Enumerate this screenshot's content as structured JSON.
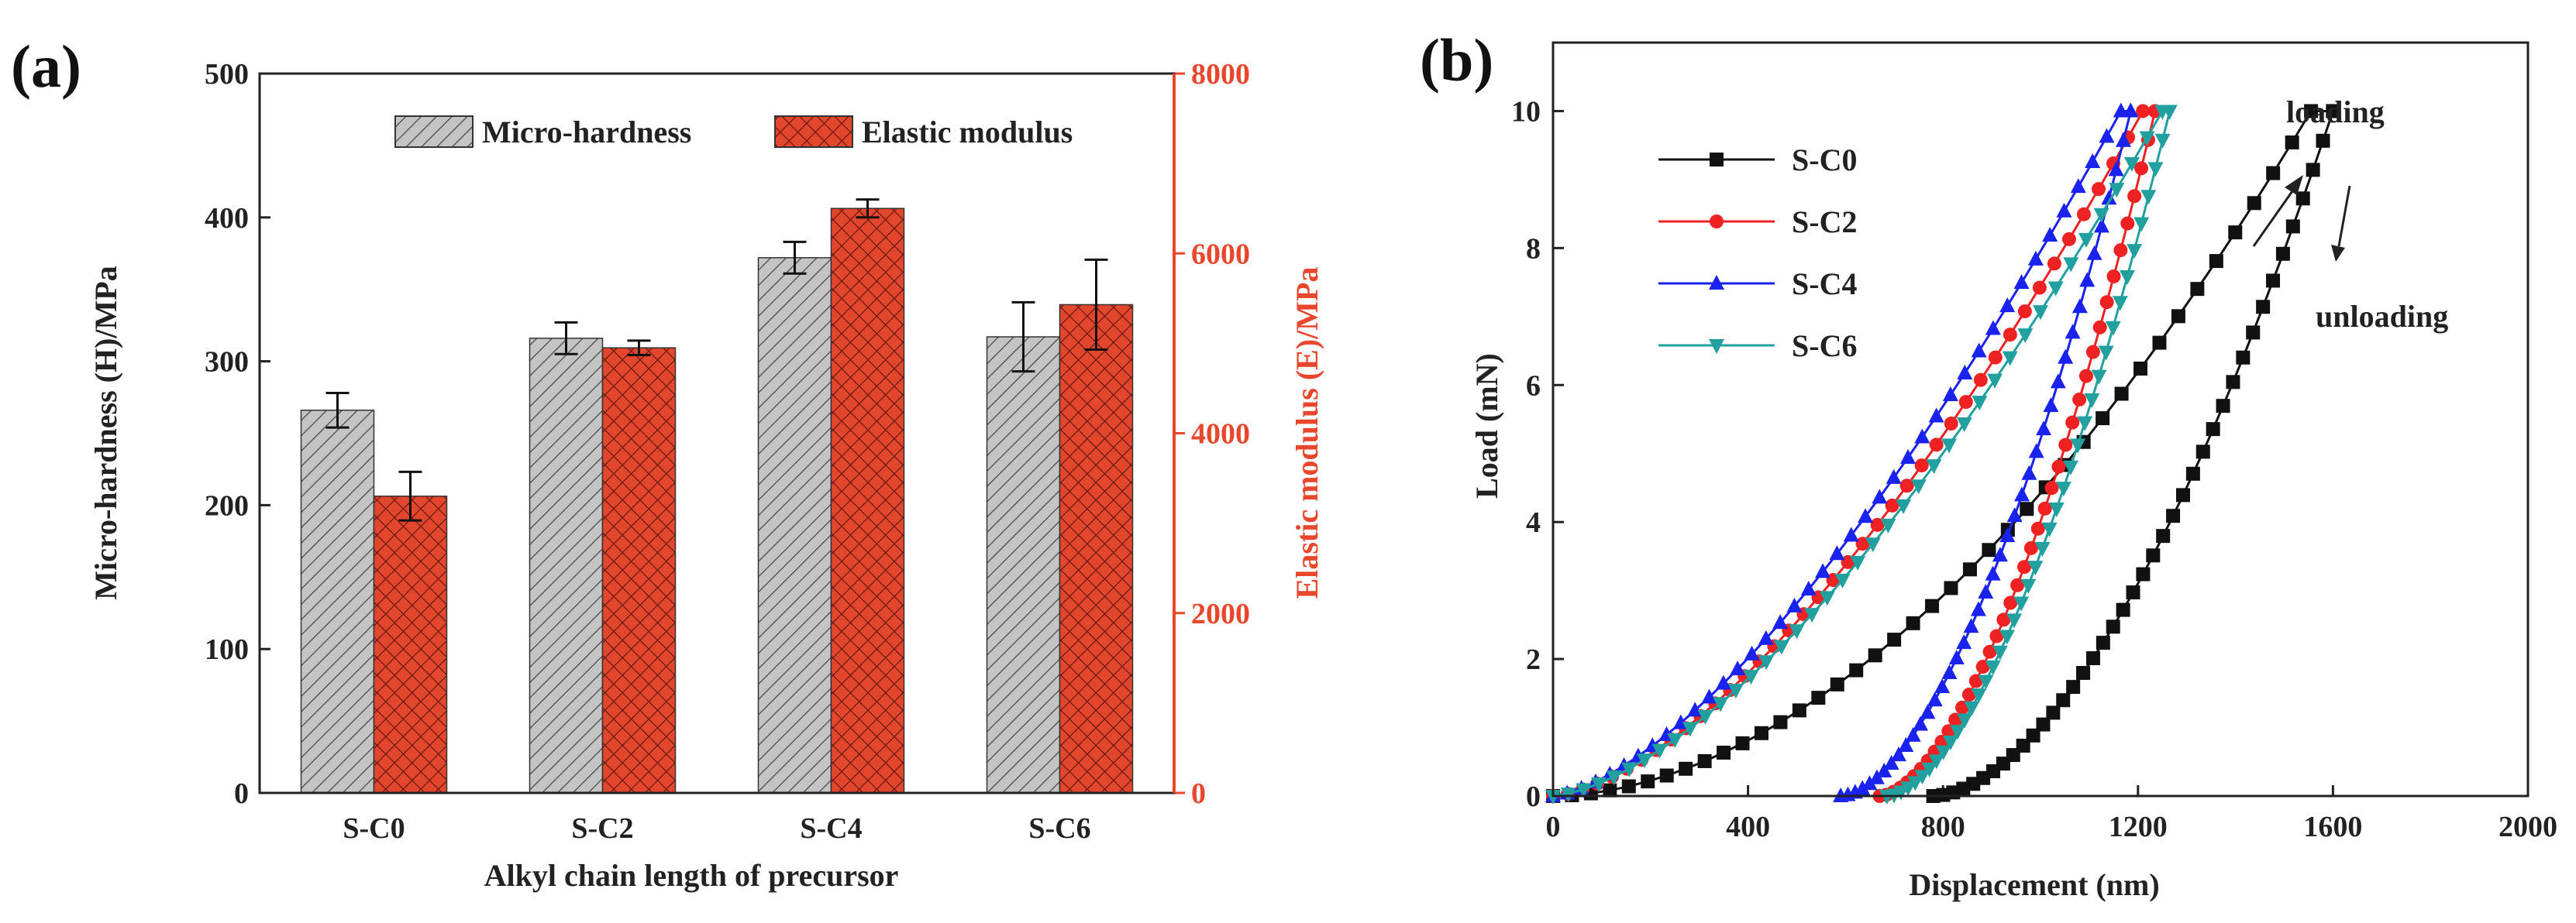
{
  "chart_data": [
    {
      "panel": "(a)",
      "type": "bar",
      "xlabel": "Alkyl chain length of precursor",
      "ylabel": "Micro-hardness (H)/MPa",
      "y2label": "Elastic modulus (E)/MPa",
      "categories": [
        "S-C0",
        "S-C2",
        "S-C4",
        "S-C6"
      ],
      "ylim": [
        0,
        500
      ],
      "yticks": [
        0,
        100,
        200,
        300,
        400,
        500
      ],
      "y2lim": [
        0,
        8000
      ],
      "y2ticks": [
        0,
        2000,
        4000,
        6000,
        8000
      ],
      "legend_position": "top-right",
      "series": [
        {
          "name": "Micro-hardness",
          "axis": "left",
          "pattern": "hatch",
          "color": "#c8c8c8",
          "values": [
            266,
            316,
            372,
            317
          ],
          "errors": [
            12,
            11,
            11,
            24
          ]
        },
        {
          "name": "Elastic modulus",
          "axis": "right",
          "pattern": "crosshatch",
          "color": "#e2462d",
          "values": [
            3300,
            4950,
            6500,
            5430
          ],
          "errors": [
            270,
            80,
            100,
            500
          ]
        }
      ]
    },
    {
      "panel": "(b)",
      "type": "line",
      "xlabel": "Displacement (nm)",
      "ylabel": "Load (mN)",
      "xlim": [
        0,
        2000
      ],
      "xticks": [
        0,
        400,
        800,
        1200,
        1600,
        2000
      ],
      "ylim": [
        0,
        11
      ],
      "yticks": [
        0,
        2,
        4,
        6,
        8,
        10
      ],
      "legend_position": "top-left",
      "annotations": [
        "loading",
        "unloading"
      ],
      "series": [
        {
          "name": "S-C0",
          "color": "#111111",
          "marker": "square",
          "loading": {
            "hmax": 1555,
            "pmax": 10,
            "exp": 1.85
          },
          "unloading": {
            "hf": 780,
            "hmax": 1600,
            "pmax": 10,
            "exp": 1.75
          }
        },
        {
          "name": "S-C2",
          "color": "#ee2222",
          "marker": "circle",
          "loading": {
            "hmax": 1210,
            "pmax": 10,
            "exp": 1.55
          },
          "unloading": {
            "hf": 670,
            "hmax": 1235,
            "pmax": 10,
            "exp": 1.7
          }
        },
        {
          "name": "S-C4",
          "color": "#1a22ee",
          "marker": "triangle-up",
          "loading": {
            "hmax": 1165,
            "pmax": 10,
            "exp": 1.5
          },
          "unloading": {
            "hf": 590,
            "hmax": 1185,
            "pmax": 10,
            "exp": 1.75
          }
        },
        {
          "name": "S-C6",
          "color": "#22a0a0",
          "marker": "triangle-down",
          "loading": {
            "hmax": 1250,
            "pmax": 10,
            "exp": 1.55
          },
          "unloading": {
            "hf": 685,
            "hmax": 1265,
            "pmax": 10,
            "exp": 1.7
          }
        }
      ]
    }
  ]
}
